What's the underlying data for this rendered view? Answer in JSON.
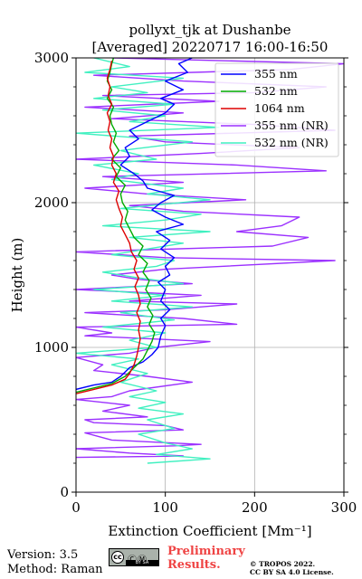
{
  "chart_data": {
    "type": "line",
    "title_line1": "pollyxt_tjk at Dushanbe",
    "title_line2": "[Averaged] 20220717 16:00-16:50",
    "xlabel": "Extinction Coefficient [Mm⁻¹]",
    "ylabel": "Height (m)",
    "xlim": [
      0,
      300
    ],
    "ylim": [
      0,
      3000
    ],
    "xticks": [
      "0",
      "100",
      "200",
      "300"
    ],
    "yticks": [
      "0",
      "1000",
      "2000",
      "3000"
    ],
    "grid": true,
    "legend_position": "top-right",
    "series": [
      {
        "name": "355 nm",
        "color": "#0000ff",
        "points": [
          [
            0,
            710
          ],
          [
            20,
            740
          ],
          [
            40,
            760
          ],
          [
            50,
            800
          ],
          [
            60,
            860
          ],
          [
            75,
            900
          ],
          [
            85,
            950
          ],
          [
            92,
            1000
          ],
          [
            95,
            1080
          ],
          [
            100,
            1150
          ],
          [
            95,
            1200
          ],
          [
            105,
            1260
          ],
          [
            95,
            1320
          ],
          [
            100,
            1400
          ],
          [
            92,
            1450
          ],
          [
            105,
            1500
          ],
          [
            100,
            1560
          ],
          [
            110,
            1620
          ],
          [
            95,
            1680
          ],
          [
            105,
            1740
          ],
          [
            90,
            1800
          ],
          [
            120,
            1850
          ],
          [
            100,
            1900
          ],
          [
            85,
            1950
          ],
          [
            95,
            2000
          ],
          [
            110,
            2050
          ],
          [
            80,
            2100
          ],
          [
            75,
            2150
          ],
          [
            65,
            2200
          ],
          [
            50,
            2260
          ],
          [
            60,
            2320
          ],
          [
            55,
            2380
          ],
          [
            70,
            2440
          ],
          [
            60,
            2500
          ],
          [
            80,
            2560
          ],
          [
            100,
            2620
          ],
          [
            110,
            2680
          ],
          [
            95,
            2720
          ],
          [
            120,
            2780
          ],
          [
            100,
            2840
          ],
          [
            125,
            2900
          ],
          [
            115,
            2960
          ],
          [
            130,
            3000
          ]
        ]
      },
      {
        "name": "532 nm",
        "color": "#00aa00",
        "points": [
          [
            0,
            690
          ],
          [
            20,
            720
          ],
          [
            40,
            750
          ],
          [
            55,
            800
          ],
          [
            65,
            860
          ],
          [
            75,
            920
          ],
          [
            80,
            980
          ],
          [
            85,
            1040
          ],
          [
            88,
            1100
          ],
          [
            82,
            1160
          ],
          [
            86,
            1220
          ],
          [
            80,
            1280
          ],
          [
            84,
            1340
          ],
          [
            78,
            1400
          ],
          [
            82,
            1460
          ],
          [
            75,
            1520
          ],
          [
            80,
            1580
          ],
          [
            70,
            1640
          ],
          [
            75,
            1700
          ],
          [
            65,
            1760
          ],
          [
            60,
            1820
          ],
          [
            55,
            1880
          ],
          [
            58,
            1940
          ],
          [
            52,
            2000
          ],
          [
            50,
            2060
          ],
          [
            55,
            2120
          ],
          [
            45,
            2180
          ],
          [
            50,
            2240
          ],
          [
            40,
            2300
          ],
          [
            48,
            2360
          ],
          [
            42,
            2420
          ],
          [
            45,
            2480
          ],
          [
            40,
            2540
          ],
          [
            38,
            2600
          ],
          [
            42,
            2660
          ],
          [
            35,
            2720
          ],
          [
            40,
            2780
          ],
          [
            35,
            2840
          ],
          [
            38,
            2900
          ],
          [
            40,
            2960
          ],
          [
            42,
            3000
          ]
        ]
      },
      {
        "name": "1064 nm",
        "color": "#dd0000",
        "points": [
          [
            0,
            680
          ],
          [
            20,
            710
          ],
          [
            40,
            740
          ],
          [
            55,
            780
          ],
          [
            60,
            820
          ],
          [
            65,
            880
          ],
          [
            68,
            940
          ],
          [
            70,
            1000
          ],
          [
            72,
            1060
          ],
          [
            70,
            1120
          ],
          [
            72,
            1180
          ],
          [
            68,
            1240
          ],
          [
            72,
            1300
          ],
          [
            70,
            1360
          ],
          [
            66,
            1420
          ],
          [
            70,
            1480
          ],
          [
            65,
            1540
          ],
          [
            68,
            1600
          ],
          [
            62,
            1660
          ],
          [
            60,
            1720
          ],
          [
            55,
            1780
          ],
          [
            50,
            1840
          ],
          [
            52,
            1900
          ],
          [
            48,
            1960
          ],
          [
            45,
            2020
          ],
          [
            48,
            2080
          ],
          [
            42,
            2140
          ],
          [
            45,
            2200
          ],
          [
            40,
            2260
          ],
          [
            42,
            2320
          ],
          [
            38,
            2380
          ],
          [
            40,
            2440
          ],
          [
            36,
            2500
          ],
          [
            38,
            2560
          ],
          [
            35,
            2620
          ],
          [
            40,
            2680
          ],
          [
            36,
            2740
          ],
          [
            38,
            2800
          ],
          [
            35,
            2860
          ],
          [
            38,
            2920
          ],
          [
            40,
            2980
          ]
        ]
      },
      {
        "name": "355 nm (NR)",
        "color": "#9b30ff",
        "points": [
          [
            0,
            240
          ],
          [
            120,
            250
          ],
          [
            60,
            270
          ],
          [
            0,
            300
          ],
          [
            110,
            320
          ],
          [
            140,
            330
          ],
          [
            40,
            360
          ],
          [
            10,
            410
          ],
          [
            120,
            430
          ],
          [
            100,
            460
          ],
          [
            20,
            480
          ],
          [
            10,
            500
          ],
          [
            80,
            520
          ],
          [
            30,
            560
          ],
          [
            60,
            600
          ],
          [
            0,
            640
          ],
          [
            40,
            660
          ],
          [
            60,
            700
          ],
          [
            130,
            760
          ],
          [
            80,
            800
          ],
          [
            20,
            840
          ],
          [
            30,
            880
          ],
          [
            0,
            930
          ],
          [
            60,
            960
          ],
          [
            90,
            1000
          ],
          [
            150,
            1040
          ],
          [
            10,
            1080
          ],
          [
            40,
            1100
          ],
          [
            0,
            1140
          ],
          [
            180,
            1160
          ],
          [
            120,
            1200
          ],
          [
            10,
            1240
          ],
          [
            100,
            1260
          ],
          [
            180,
            1300
          ],
          [
            60,
            1320
          ],
          [
            140,
            1360
          ],
          [
            0,
            1400
          ],
          [
            130,
            1440
          ],
          [
            70,
            1470
          ],
          [
            40,
            1500
          ],
          [
            100,
            1540
          ],
          [
            290,
            1600
          ],
          [
            100,
            1620
          ],
          [
            0,
            1660
          ],
          [
            220,
            1700
          ],
          [
            260,
            1760
          ],
          [
            180,
            1800
          ],
          [
            230,
            1840
          ],
          [
            250,
            1900
          ],
          [
            120,
            1940
          ],
          [
            60,
            1980
          ],
          [
            190,
            2020
          ],
          [
            80,
            2060
          ],
          [
            10,
            2100
          ],
          [
            120,
            2140
          ],
          [
            30,
            2180
          ],
          [
            280,
            2220
          ],
          [
            180,
            2260
          ],
          [
            0,
            2300
          ],
          [
            140,
            2340
          ],
          [
            250,
            2380
          ],
          [
            100,
            2420
          ],
          [
            60,
            2460
          ],
          [
            290,
            2500
          ],
          [
            200,
            2540
          ],
          [
            40,
            2580
          ],
          [
            120,
            2620
          ],
          [
            10,
            2660
          ],
          [
            160,
            2700
          ],
          [
            30,
            2740
          ],
          [
            200,
            2760
          ],
          [
            280,
            2800
          ],
          [
            120,
            2840
          ],
          [
            20,
            2880
          ],
          [
            240,
            2920
          ],
          [
            300,
            2960
          ],
          [
            40,
            3000
          ]
        ]
      },
      {
        "name": "532 nm (NR)",
        "color": "#40f0c0",
        "points": [
          [
            80,
            200
          ],
          [
            150,
            230
          ],
          [
            90,
            260
          ],
          [
            130,
            300
          ],
          [
            100,
            340
          ],
          [
            70,
            400
          ],
          [
            110,
            440
          ],
          [
            80,
            500
          ],
          [
            120,
            540
          ],
          [
            70,
            580
          ],
          [
            100,
            620
          ],
          [
            60,
            660
          ],
          [
            90,
            700
          ],
          [
            50,
            760
          ],
          [
            80,
            820
          ],
          [
            40,
            880
          ],
          [
            70,
            920
          ],
          [
            0,
            960
          ],
          [
            90,
            1000
          ],
          [
            60,
            1050
          ],
          [
            100,
            1100
          ],
          [
            30,
            1140
          ],
          [
            110,
            1190
          ],
          [
            50,
            1240
          ],
          [
            130,
            1280
          ],
          [
            40,
            1320
          ],
          [
            100,
            1360
          ],
          [
            20,
            1400
          ],
          [
            120,
            1440
          ],
          [
            70,
            1480
          ],
          [
            30,
            1520
          ],
          [
            90,
            1560
          ],
          [
            110,
            1600
          ],
          [
            40,
            1640
          ],
          [
            80,
            1680
          ],
          [
            120,
            1720
          ],
          [
            60,
            1760
          ],
          [
            150,
            1800
          ],
          [
            30,
            1840
          ],
          [
            100,
            1880
          ],
          [
            140,
            1920
          ],
          [
            50,
            1960
          ],
          [
            150,
            2020
          ],
          [
            80,
            2060
          ],
          [
            120,
            2100
          ],
          [
            40,
            2160
          ],
          [
            70,
            2200
          ],
          [
            20,
            2260
          ],
          [
            90,
            2300
          ],
          [
            50,
            2360
          ],
          [
            130,
            2420
          ],
          [
            0,
            2480
          ],
          [
            160,
            2520
          ],
          [
            60,
            2560
          ],
          [
            100,
            2600
          ],
          [
            30,
            2640
          ],
          [
            110,
            2680
          ],
          [
            20,
            2720
          ],
          [
            80,
            2760
          ],
          [
            40,
            2800
          ],
          [
            120,
            2860
          ],
          [
            10,
            2900
          ],
          [
            60,
            2940
          ],
          [
            20,
            3000
          ]
        ]
      }
    ]
  },
  "footer": {
    "version": "Version: 3.5",
    "method": "Method: Raman",
    "preliminary_line1": "Preliminary",
    "preliminary_line2": "Results.",
    "copyright_line1": "© TROPOS 2022.",
    "copyright_line2": "CC BY SA 4.0 License.",
    "license_badge": "cc",
    "license_strip": "BY   SA",
    "license_icons": "ⒸⓂ"
  }
}
